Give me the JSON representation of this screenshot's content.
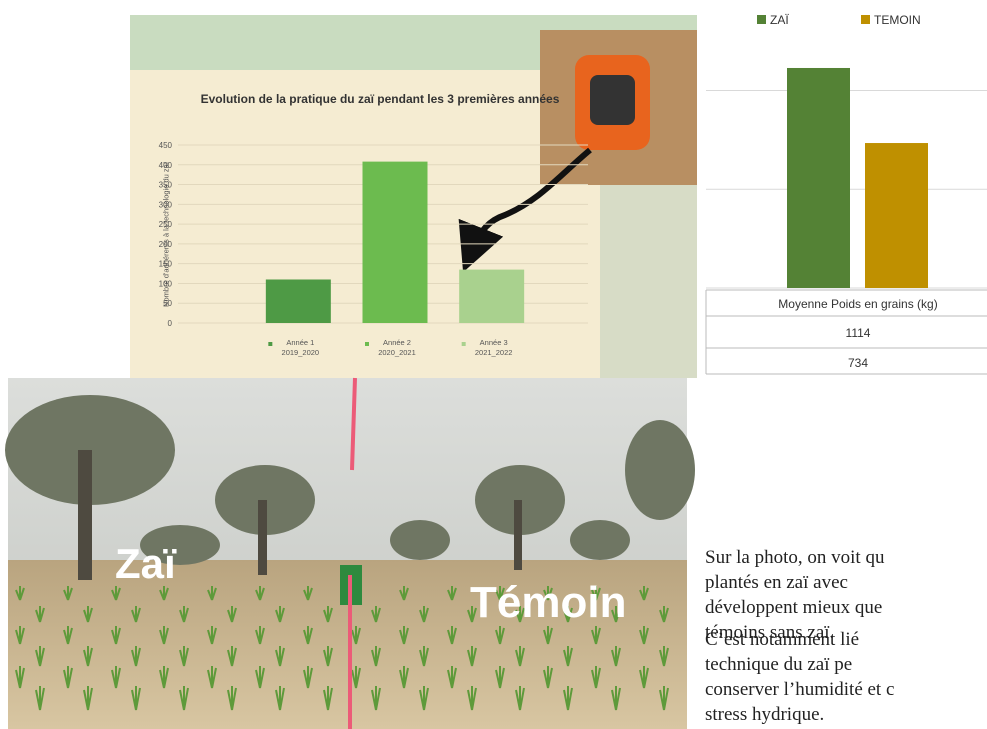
{
  "chart_data": [
    {
      "type": "bar",
      "title": "Evolution de la pratique du zaï pendant les 3 premières années",
      "y_label": "Nombre d'adhérents à la technologie du zaï",
      "categories": [
        "Année 1 2019_2020",
        "Année 2 2020_2021",
        "Année 3 2021_2022"
      ],
      "values": [
        110,
        408,
        135
      ],
      "colors": [
        "#4e9a45",
        "#6cbb4f",
        "#a9d18e"
      ],
      "ylim": [
        0,
        450
      ],
      "yticks": [
        0,
        50,
        100,
        150,
        200,
        250,
        300,
        350,
        400,
        450
      ],
      "grid": true
    },
    {
      "type": "bar",
      "categories": [
        "Moyenne Poids en grains (kg)"
      ],
      "series": [
        {
          "name": "ZAÏ",
          "color": "#548235",
          "values": [
            1114
          ]
        },
        {
          "name": "TEMOIN",
          "color": "#bf9000",
          "values": [
            734
          ]
        }
      ],
      "ylim": [
        0,
        1200
      ],
      "yticks": [
        0,
        500,
        1000
      ],
      "tick_labels": false,
      "grid": true,
      "legend": "top",
      "data_table": true
    }
  ],
  "photo": {
    "labels": [
      "Zaï",
      "Témoin"
    ]
  },
  "text": {
    "paragraphs": [
      [
        "Sur la photo, on voit qu",
        "plantés en zaï avec",
        "développent mieux que",
        "témoins sans zaï."
      ],
      [
        "C’est notamment lié",
        "technique du zaï pe",
        "conserver l’humidité et c",
        "stress hydrique."
      ]
    ]
  }
}
